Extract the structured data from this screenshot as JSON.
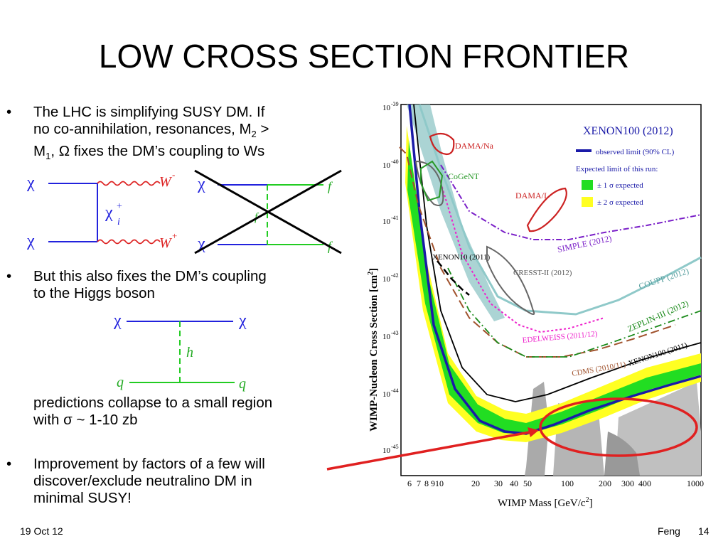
{
  "slide": {
    "title": "LOW CROSS SECTION FRONTIER",
    "bullets": [
      {
        "marker": "•",
        "lines": [
          "The LHC is simplifying SUSY DM. If",
          "no co-annihilation, resonances, M",
          "M",
          "fixes the DM’s coupling to Ws"
        ],
        "sub2": "2",
        "gt": " >",
        "sub1": "1",
        "omega": ", Ω"
      },
      {
        "marker": "•",
        "lines": [
          "But this also fixes the DM’s coupling",
          "to the Higgs boson"
        ]
      },
      {
        "lines": [
          "predictions collapse to a small region",
          "with σ ~ 1-10 zb"
        ]
      },
      {
        "marker": "•",
        "lines": [
          "Improvement by factors of a few will",
          "discover/exclude neutralino DM in",
          "minimal SUSY!"
        ]
      }
    ],
    "footer": {
      "date": "19 Oct 12",
      "author": "Feng",
      "page": "14"
    }
  },
  "diagrams": {
    "ww": {
      "chi_top": "χ",
      "chi_bottom": "χ",
      "chi_i": "χ",
      "chi_i_sup": "+",
      "chi_i_sub": "i",
      "w_minus": "W",
      "w_minus_sup": "-",
      "w_plus": "W",
      "w_plus_sup": "+"
    },
    "ff": {
      "chi_top": "χ",
      "chi_bottom": "χ",
      "f_top": "f",
      "f_bottom": "f",
      "f_mid": "f"
    },
    "higgs": {
      "chi_left": "χ",
      "chi_right": "χ",
      "h": "h",
      "q_left": "q",
      "q_right": "q"
    }
  },
  "plot": {
    "y_label": "WIMP-Nucleon Cross Section [cm",
    "y_label_sup": "2",
    "y_label_end": "]",
    "x_label": "WIMP Mass [GeV/c",
    "x_label_sup": "2",
    "x_label_end": "]",
    "y_ticks": [
      "10",
      "10",
      "10",
      "10",
      "10",
      "10",
      "10"
    ],
    "y_tick_exps": [
      "-39",
      "-40",
      "-41",
      "-42",
      "-43",
      "-44",
      "-45"
    ],
    "x_ticks": [
      "6",
      "7",
      "8",
      "9",
      "10",
      "20",
      "30",
      "40",
      "50",
      "100",
      "200",
      "300",
      "400",
      "1000"
    ],
    "legend_title": "XENON100 (2012)",
    "legend_observed": "observed limit (90% CL)",
    "legend_expected_title": "Expected limit of this run:",
    "legend_1sigma": "± 1 σ expected",
    "legend_2sigma": "± 2 σ expected",
    "labels": {
      "dama_na": "DAMA/Na",
      "cogent": "CoGeNT",
      "dama_i": "DAMA/I",
      "simple": "SIMPLE (2012)",
      "xenon10": "XENON10 (2011)",
      "cresst": "CRESST-II (2012)",
      "coupp": "COUPP (2012)",
      "zeplin": "ZEPLIN-III (2012)",
      "edelweiss": "EDELWEISS (2011/12)",
      "cdms": "CDMS (2010/11)",
      "xenon100_2011": "XENON100 (2011)"
    },
    "colors": {
      "observed": "#1a1aa8",
      "one_sigma": "#22dd22",
      "two_sigma": "#ffff22",
      "dama": "#cc2222",
      "cogent": "#2a9a2a",
      "simple": "#7a1fc8",
      "coupp": "#8fc9c9",
      "zeplin": "#1a8a1a",
      "edelweiss": "#ee22cc",
      "cdms": "#a0522d",
      "highlight": "#e02020"
    }
  }
}
